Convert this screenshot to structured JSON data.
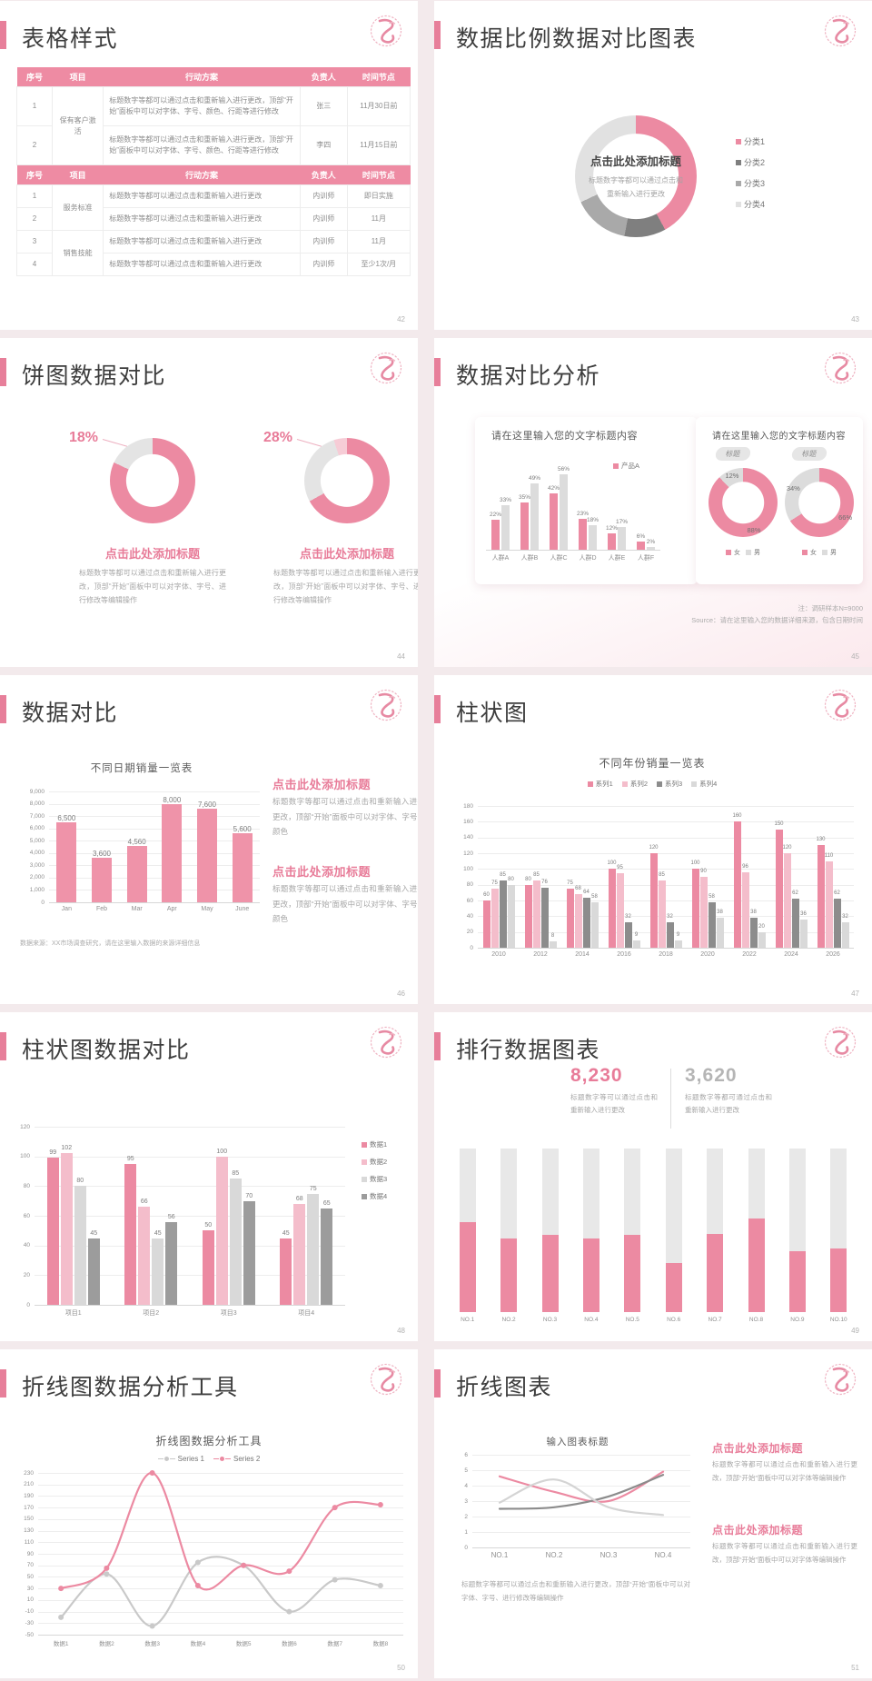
{
  "accent_color": "#e77f9a",
  "slides": [
    {
      "title": "表格样式",
      "page_no": "42",
      "tables": {
        "headers": [
          "序号",
          "项目",
          "行动方案",
          "负责人",
          "时间节点"
        ],
        "t1_rows": [
          [
            {
              "t": "1"
            },
            {
              "t": "保有客户激活",
              "rs": 2
            },
            {
              "t": "标题数字等都可以通过点击和重新输入进行更改，顶部“开始”面板中可以对字体、字号、颜色、行距等进行修改",
              "act": true
            },
            {
              "t": "张三"
            },
            {
              "t": "11月30日前"
            }
          ],
          [
            {
              "t": "2"
            },
            null,
            {
              "t": "标题数字等都可以通过点击和重新输入进行更改，顶部“开始”面板中可以对字体、字号、颜色、行距等进行修改",
              "act": true
            },
            {
              "t": "李四"
            },
            {
              "t": "11月15日前"
            }
          ]
        ],
        "t2_rows": [
          [
            {
              "t": "1"
            },
            {
              "t": "服务标准",
              "rs": 2
            },
            {
              "t": "标题数字等都可以通过点击和重新输入进行更改",
              "act": true
            },
            {
              "t": "内训师"
            },
            {
              "t": "即日实施"
            }
          ],
          [
            {
              "t": "2"
            },
            null,
            {
              "t": "标题数字等都可以通过点击和重新输入进行更改",
              "act": true
            },
            {
              "t": "内训师"
            },
            {
              "t": "11月"
            }
          ],
          [
            {
              "t": "3"
            },
            {
              "t": "销售技能",
              "rs": 2
            },
            {
              "t": "标题数字等都可以通过点击和重新输入进行更改",
              "act": true
            },
            {
              "t": "内训师"
            },
            {
              "t": "11月"
            }
          ],
          [
            {
              "t": "4"
            },
            null,
            {
              "t": "标题数字等都可以通过点击和重新输入进行更改",
              "act": true
            },
            {
              "t": "内训师"
            },
            {
              "t": "至少1次/月"
            }
          ]
        ]
      }
    },
    {
      "title": "数据比例数据对比图表",
      "page_no": "43"
    },
    {
      "title": "饼图数据对比",
      "page_no": "44"
    },
    {
      "title": "数据对比分析",
      "page_no": "45",
      "card2_title": "请在这里输入您的文字标题内容",
      "note1": "注：调研样本N=9000",
      "note2": "Source：请在这里输入您的数据详细来源，包含日期时间"
    },
    {
      "title": "数据对比",
      "page_no": "46",
      "blocks": [
        {
          "h": "点击此处添加标题",
          "b": "标题数字等都可以通过点击和重新输入进行更改，顶部“开始”面板中可以对字体、字号、颜色"
        },
        {
          "h": "点击此处添加标题",
          "b": "标题数字等都可以通过点击和重新输入进行更改，顶部“开始”面板中可以对字体、字号、颜色"
        }
      ],
      "note": "数据来源：XX市场调查研究，请在这里输入数据的来源详细信息"
    },
    {
      "title": "柱状图",
      "page_no": "47"
    },
    {
      "title": "柱状图数据对比",
      "page_no": "48"
    },
    {
      "title": "排行数据图表",
      "page_no": "49",
      "stats": [
        {
          "value": "8,230",
          "desc": "标题数字等可以通过点击和重新输入进行更改"
        },
        {
          "value": "3,620",
          "desc": "标题数字等都可通过点击和重新输入进行更改"
        }
      ]
    },
    {
      "title": "折线图数据分析工具",
      "page_no": "50"
    },
    {
      "title": "折线图表",
      "page_no": "51",
      "blocks": [
        {
          "h": "点击此处添加标题",
          "b": "标题数字等都可以通过点击和重新输入进行更改，顶部“开始”面板中可以对字体等编辑操作"
        },
        {
          "h": "点击此处添加标题",
          "b": "标题数字等都可以通过点击和重新输入进行更改，顶部“开始”面板中可以对字体等编辑操作"
        }
      ],
      "note": "标题数字等都可以通过点击和重新输入进行更改，顶部“开始”面板中可以对字体、字号、进行修改等编辑操作"
    }
  ],
  "chart_data": [
    {
      "id": "donut43",
      "type": "pie",
      "center_title": "点击此处添加标题",
      "center_sub": "标题数字等都可以通过点击和重新输入进行更改",
      "slices": [
        {
          "label": "分类1",
          "value": 42,
          "color": "#ec8aa2"
        },
        {
          "label": "分类2",
          "value": 11,
          "color": "#7f7f7f"
        },
        {
          "label": "分类3",
          "value": 15,
          "color": "#a9a9a9"
        },
        {
          "label": "分类4",
          "value": 32,
          "color": "#e1e1e1"
        }
      ]
    },
    {
      "id": "donut44a",
      "type": "pie",
      "callout": "18%",
      "caption": "点击此处添加标题",
      "desc": "标题数字等都可以通过点击和重新输入进行更改，顶部“开始”面板中可以对字体、字号、进行修改等编辑操作",
      "slices": [
        {
          "label": "主体",
          "value": 82,
          "color": "#ec8aa2"
        },
        {
          "label": "占比",
          "value": 18,
          "color": "#e4e4e4"
        }
      ]
    },
    {
      "id": "donut44b",
      "type": "pie",
      "callout": "28%",
      "caption": "点击此处添加标题",
      "desc": "标题数字等都可以通过点击和重新输入进行更改，顶部“开始”面板中可以对字体、字号、进行修改等编辑操作",
      "slices": [
        {
          "label": "主体",
          "value": 67,
          "color": "#ec8aa2"
        },
        {
          "label": "占比",
          "value": 28,
          "color": "#e4e4e4"
        },
        {
          "label": "其他",
          "value": 5,
          "color": "#f6ccd6"
        }
      ]
    },
    {
      "id": "bars45",
      "type": "bar",
      "title": "请在这里输入您的文字标题内容",
      "categories": [
        "人群A",
        "人群B",
        "人群C",
        "人群D",
        "人群E",
        "人群F"
      ],
      "ylim": [
        0,
        62
      ],
      "yticks": [],
      "label_fmt": "percent",
      "series": [
        {
          "name": "产品A",
          "color": "#ec8aa2",
          "values": [
            22,
            35,
            42,
            23,
            12,
            6
          ]
        },
        {
          "name": "",
          "color": "#dcdcdc",
          "values": [
            33,
            49,
            56,
            18,
            17,
            2
          ]
        }
      ]
    },
    {
      "id": "donut45a",
      "type": "pie",
      "tag": "标题",
      "slices": [
        {
          "label": "女",
          "value": 88,
          "color": "#ec8aa2",
          "pct_label": "88%"
        },
        {
          "label": "男",
          "value": 12,
          "color": "#dcdcdc",
          "pct_label": "12%"
        }
      ]
    },
    {
      "id": "donut45b",
      "type": "pie",
      "tag": "标题",
      "slices": [
        {
          "label": "女",
          "value": 66,
          "color": "#ec8aa2",
          "pct_label": "66%"
        },
        {
          "label": "男",
          "value": 34,
          "color": "#dcdcdc",
          "pct_label": "34%"
        }
      ]
    },
    {
      "id": "bars46",
      "type": "bar",
      "title": "不同日期销量一览表",
      "categories": [
        "Jan",
        "Feb",
        "Mar",
        "Apr",
        "May",
        "June"
      ],
      "ylim": [
        0,
        9000
      ],
      "yticks": [
        9000,
        8000,
        7000,
        6000,
        5000,
        4000,
        3000,
        2000,
        1000,
        0
      ],
      "tick_fmt": "thousands",
      "label_fmt": "thousands",
      "series": [
        {
          "name": "销量",
          "color": "#ef93a9",
          "values": [
            6500,
            3600,
            4560,
            8000,
            7600,
            5600
          ]
        }
      ]
    },
    {
      "id": "bars47",
      "type": "bar",
      "title": "不同年份销量一览表",
      "categories": [
        "2010",
        "2012",
        "2014",
        "2016",
        "2018",
        "2020",
        "2022",
        "2024",
        "2026"
      ],
      "ylim": [
        0,
        180
      ],
      "yticks": [
        180,
        160,
        140,
        120,
        100,
        80,
        60,
        40,
        20,
        0
      ],
      "label_fmt": "plain",
      "series": [
        {
          "name": "系列1",
          "color": "#ec8aa2",
          "values": [
            60,
            80,
            75,
            100,
            120,
            100,
            160,
            150,
            130
          ]
        },
        {
          "name": "系列2",
          "color": "#f4bdcb",
          "values": [
            75,
            85,
            68,
            95,
            85,
            90,
            96,
            120,
            110
          ]
        },
        {
          "name": "系列3",
          "color": "#8c8c8c",
          "values": [
            85,
            76,
            64,
            32,
            32,
            58,
            38,
            62,
            62
          ]
        },
        {
          "name": "系列4",
          "color": "#d9d9d9",
          "values": [
            80,
            8,
            58,
            9,
            9,
            38,
            20,
            36,
            32
          ]
        }
      ]
    },
    {
      "id": "bars48",
      "type": "bar",
      "categories": [
        "项目1",
        "项目2",
        "项目3",
        "项目4"
      ],
      "ylim": [
        0,
        120
      ],
      "yticks": [
        120,
        100,
        80,
        60,
        40,
        20,
        0
      ],
      "label_fmt": "plain",
      "series": [
        {
          "name": "数据1",
          "color": "#ec8aa2",
          "values": [
            99,
            95,
            50,
            45
          ]
        },
        {
          "name": "数据2",
          "color": "#f4bdcb",
          "values": [
            102,
            66,
            100,
            68
          ]
        },
        {
          "name": "数据3",
          "color": "#d9d9d9",
          "values": [
            80,
            45,
            85,
            75
          ]
        },
        {
          "name": "数据4",
          "color": "#9c9c9c",
          "values": [
            45,
            56,
            70,
            65
          ]
        }
      ]
    },
    {
      "id": "stack49",
      "type": "stacked",
      "categories": [
        "NO.1",
        "NO.2",
        "NO.3",
        "NO.4",
        "NO.5",
        "NO.6",
        "NO.7",
        "NO.8",
        "NO.9",
        "NO.10"
      ],
      "series": [
        {
          "name": "下段",
          "color": "#ec8aa2",
          "values": [
            55,
            45,
            47,
            45,
            47,
            30,
            48,
            57,
            37,
            39
          ]
        },
        {
          "name": "上段",
          "color": "#e8e8e8",
          "values": [
            45,
            55,
            53,
            55,
            53,
            70,
            52,
            43,
            63,
            61
          ]
        }
      ]
    },
    {
      "id": "line50",
      "type": "line",
      "title": "折线图数据分析工具",
      "categories": [
        "数据1",
        "数据2",
        "数据3",
        "数据4",
        "数据5",
        "数据6",
        "数据7",
        "数据8"
      ],
      "ylim": [
        -50,
        230
      ],
      "yticks": [
        230,
        210,
        190,
        170,
        150,
        130,
        110,
        90,
        70,
        50,
        30,
        10,
        -10,
        -30,
        -50
      ],
      "series": [
        {
          "name": "Series 1",
          "color": "#c9c9c9",
          "dots": true,
          "values": [
            -20,
            55,
            -35,
            75,
            70,
            -10,
            45,
            35
          ]
        },
        {
          "name": "Series 2",
          "color": "#ec8aa2",
          "dots": true,
          "values": [
            30,
            65,
            230,
            35,
            70,
            60,
            170,
            175
          ]
        }
      ]
    },
    {
      "id": "line51",
      "type": "line",
      "title": "输入图表标题",
      "categories": [
        "NO.1",
        "NO.2",
        "NO.3",
        "NO.4"
      ],
      "ylim": [
        0,
        6
      ],
      "yticks": [
        6,
        5,
        4,
        3,
        2,
        1,
        0
      ],
      "series": [
        {
          "name": "线1",
          "color": "#ec8aa2",
          "values": [
            4.6,
            3.6,
            3,
            4.9
          ]
        },
        {
          "name": "线2",
          "color": "#8c8c8c",
          "values": [
            2.5,
            2.6,
            3.3,
            4.7
          ]
        },
        {
          "name": "线3",
          "color": "#d4d4d4",
          "values": [
            2.9,
            4.4,
            2.6,
            2.1
          ]
        }
      ]
    }
  ]
}
